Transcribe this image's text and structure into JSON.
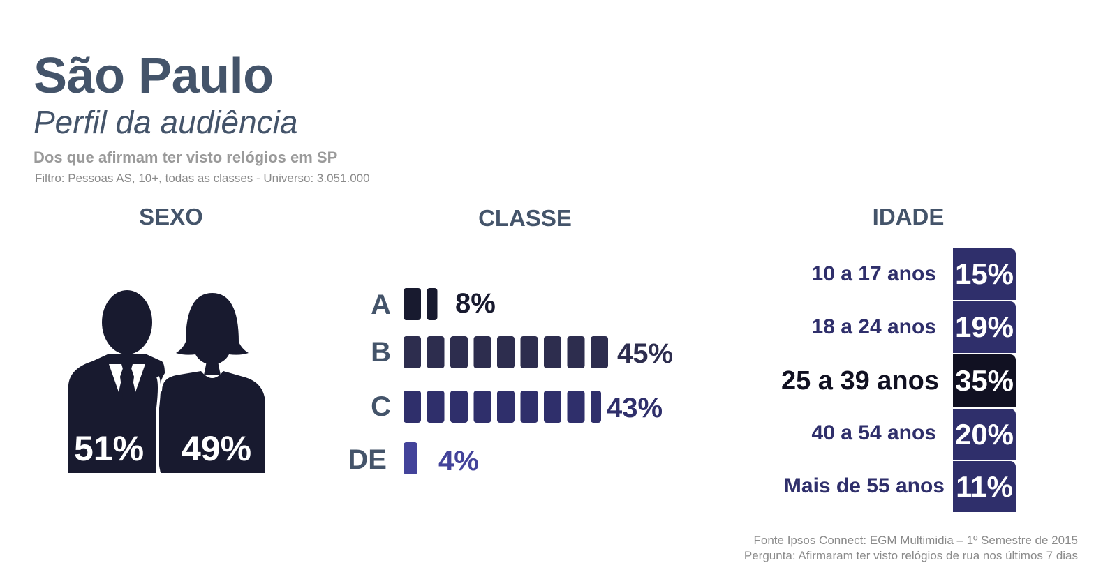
{
  "header": {
    "title": "São Paulo",
    "subtitle": "Perfil da audiência",
    "description": "Dos que afirmam ter visto relógios em SP",
    "filter": "Filtro: Pessoas AS, 10+, todas as classes - Universo: 3.051.000"
  },
  "sections": {
    "sexo": "SEXO",
    "classe": "CLASSE",
    "idade": "IDADE"
  },
  "colors": {
    "text_primary": "#44546a",
    "dark_navy": "#181a2f",
    "class_b": "#2d2d4e",
    "class_c": "#2f2f6b",
    "class_de": "#43439a",
    "age_box": "#2f2f6b",
    "age_highlight": "#111122"
  },
  "icons": {
    "male": "man-in-suit-icon",
    "female": "woman-icon"
  },
  "chart_data": [
    {
      "type": "pictogram",
      "title": "SEXO",
      "categories": [
        "male",
        "female"
      ],
      "labels": [
        "51%",
        "49%"
      ],
      "values": [
        51,
        49
      ]
    },
    {
      "type": "bar",
      "title": "CLASSE",
      "categories": [
        "A",
        "B",
        "C",
        "DE"
      ],
      "labels": [
        "8%",
        "45%",
        "43%",
        "4%"
      ],
      "values": [
        8,
        45,
        43,
        4
      ],
      "colors": [
        "#181a2f",
        "#2d2d4e",
        "#2f2f6b",
        "#43439a"
      ],
      "units_per_block": 5
    },
    {
      "type": "table",
      "title": "IDADE",
      "categories": [
        "10 a 17 anos",
        "18 a 24 anos",
        "25 a 39 anos",
        "40 a 54 anos",
        "Mais de 55 anos"
      ],
      "labels": [
        "15%",
        "19%",
        "35%",
        "20%",
        "11%"
      ],
      "values": [
        15,
        19,
        35,
        20,
        11
      ],
      "highlight": "25 a 39 anos"
    }
  ],
  "footer": {
    "source": "Fonte Ipsos Connect: EGM Multimidia – 1º Semestre de 2015",
    "question": "Pergunta: Afirmaram ter visto relógios de rua nos últimos 7 dias"
  }
}
